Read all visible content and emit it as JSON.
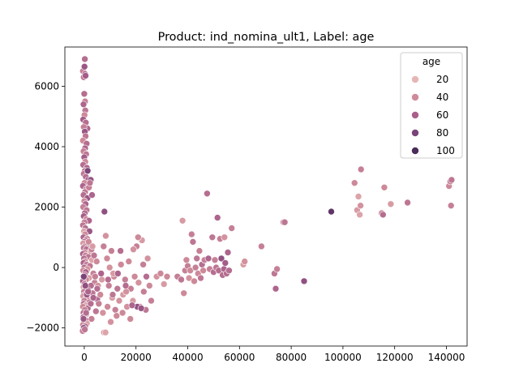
{
  "chart_data": {
    "type": "scatter",
    "title": "Product: ind_nomina_ult1, Label: age",
    "xlabel": "",
    "ylabel": "",
    "xlim": [
      -7500,
      148000
    ],
    "ylim": [
      -2600,
      7300
    ],
    "xticks": [
      0,
      20000,
      40000,
      60000,
      80000,
      100000,
      120000,
      140000
    ],
    "xtick_labels": [
      "0",
      "20000",
      "40000",
      "60000",
      "80000",
      "100000",
      "120000",
      "140000"
    ],
    "yticks": [
      -2000,
      0,
      2000,
      4000,
      6000
    ],
    "ytick_labels": [
      "−2000",
      "0",
      "2000",
      "4000",
      "6000"
    ],
    "grid": false,
    "legend": {
      "title": "age",
      "placement": "top-right",
      "entries": [
        {
          "label": "20",
          "color": "#e6b6b5"
        },
        {
          "label": "40",
          "color": "#cf8b9a"
        },
        {
          "label": "60",
          "color": "#a9608b"
        },
        {
          "label": "80",
          "color": "#7a4478"
        },
        {
          "label": "100",
          "color": "#4b2c5a"
        }
      ]
    },
    "hue_scale": {
      "min": 15,
      "max": 110
    },
    "points": [
      [
        -500,
        6500,
        45
      ],
      [
        200,
        6900,
        55
      ],
      [
        100,
        6650,
        70
      ],
      [
        300,
        6400,
        60
      ],
      [
        -200,
        6300,
        50
      ],
      [
        500,
        6350,
        65
      ],
      [
        0,
        5750,
        55
      ],
      [
        300,
        5500,
        45
      ],
      [
        -300,
        5400,
        60
      ],
      [
        400,
        5200,
        50
      ],
      [
        100,
        5050,
        40
      ],
      [
        -400,
        4900,
        65
      ],
      [
        600,
        4800,
        55
      ],
      [
        1200,
        4600,
        60
      ],
      [
        -200,
        4650,
        45
      ],
      [
        200,
        4500,
        70
      ],
      [
        500,
        4350,
        50
      ],
      [
        -500,
        4200,
        40
      ],
      [
        900,
        4100,
        55
      ],
      [
        300,
        3950,
        60
      ],
      [
        -300,
        3850,
        45
      ],
      [
        700,
        3750,
        50
      ],
      [
        0,
        3650,
        65
      ],
      [
        400,
        3500,
        40
      ],
      [
        -400,
        3400,
        55
      ],
      [
        1000,
        3300,
        60
      ],
      [
        200,
        3200,
        45
      ],
      [
        -200,
        3100,
        50
      ],
      [
        600,
        3000,
        55
      ],
      [
        1500,
        2900,
        65
      ],
      [
        100,
        2800,
        40
      ],
      [
        -500,
        2700,
        60
      ],
      [
        800,
        2600,
        45
      ],
      [
        300,
        2500,
        50
      ],
      [
        -300,
        2400,
        55
      ],
      [
        1200,
        2300,
        70
      ],
      [
        0,
        2200,
        40
      ],
      [
        500,
        2100,
        60
      ],
      [
        -400,
        2000,
        45
      ],
      [
        900,
        1900,
        50
      ],
      [
        200,
        1800,
        55
      ],
      [
        -200,
        1700,
        65
      ],
      [
        700,
        1600,
        40
      ],
      [
        1800,
        1550,
        60
      ],
      [
        100,
        1500,
        45
      ],
      [
        -500,
        1400,
        50
      ],
      [
        400,
        1300,
        55
      ],
      [
        -100,
        1200,
        25
      ],
      [
        2000,
        1200,
        70
      ],
      [
        300,
        1100,
        40
      ],
      [
        -300,
        1000,
        60
      ],
      [
        1100,
        950,
        45
      ],
      [
        600,
        900,
        50
      ],
      [
        0,
        850,
        55
      ],
      [
        -400,
        800,
        30
      ],
      [
        1400,
        750,
        60
      ],
      [
        200,
        700,
        45
      ],
      [
        -200,
        650,
        50
      ],
      [
        800,
        600,
        55
      ],
      [
        2500,
        550,
        35
      ],
      [
        100,
        500,
        40
      ],
      [
        -500,
        450,
        60
      ],
      [
        500,
        400,
        45
      ],
      [
        1600,
        350,
        50
      ],
      [
        -100,
        300,
        55
      ],
      [
        3000,
        250,
        25
      ],
      [
        300,
        200,
        40
      ],
      [
        -300,
        150,
        60
      ],
      [
        900,
        100,
        45
      ],
      [
        2200,
        50,
        50
      ],
      [
        0,
        0,
        55
      ],
      [
        1200,
        -50,
        35
      ],
      [
        -400,
        -100,
        40
      ],
      [
        600,
        -150,
        60
      ],
      [
        3500,
        -200,
        45
      ],
      [
        200,
        -250,
        50
      ],
      [
        -200,
        -300,
        55
      ],
      [
        1800,
        -350,
        30
      ],
      [
        700,
        -400,
        40
      ],
      [
        -500,
        -450,
        60
      ],
      [
        4000,
        -500,
        45
      ],
      [
        100,
        -550,
        50
      ],
      [
        2600,
        -600,
        55
      ],
      [
        -300,
        -650,
        25
      ],
      [
        500,
        -700,
        40
      ],
      [
        1500,
        -750,
        60
      ],
      [
        -100,
        -800,
        45
      ],
      [
        3200,
        -850,
        50
      ],
      [
        300,
        -900,
        55
      ],
      [
        -400,
        -950,
        30
      ],
      [
        900,
        -1000,
        40
      ],
      [
        5000,
        -1050,
        60
      ],
      [
        0,
        -1100,
        45
      ],
      [
        2000,
        -1150,
        50
      ],
      [
        -200,
        -1200,
        55
      ],
      [
        600,
        -1250,
        25
      ],
      [
        -500,
        -1300,
        40
      ],
      [
        1300,
        -1350,
        60
      ],
      [
        200,
        -1400,
        45
      ],
      [
        4500,
        -1450,
        50
      ],
      [
        -300,
        -1500,
        55
      ],
      [
        800,
        -1550,
        30
      ],
      [
        100,
        -1600,
        40
      ],
      [
        -400,
        -1650,
        60
      ],
      [
        2800,
        -1700,
        45
      ],
      [
        500,
        -1750,
        50
      ],
      [
        -100,
        -1800,
        55
      ],
      [
        1000,
        -1850,
        25
      ],
      [
        -500,
        -1900,
        40
      ],
      [
        300,
        -1950,
        60
      ],
      [
        -200,
        -2000,
        80
      ],
      [
        -600,
        -2100,
        45
      ],
      [
        200,
        -2050,
        50
      ],
      [
        700,
        -1500,
        55
      ],
      [
        -300,
        -1700,
        70
      ],
      [
        400,
        -600,
        75
      ],
      [
        -200,
        -300,
        85
      ],
      [
        1000,
        -900,
        70
      ],
      [
        1300,
        3200,
        85
      ],
      [
        2500,
        2900,
        75
      ],
      [
        3000,
        2400,
        60
      ],
      [
        1800,
        2650,
        45
      ],
      [
        2200,
        2800,
        50
      ],
      [
        1700,
        850,
        40
      ],
      [
        2800,
        600,
        45
      ],
      [
        3200,
        700,
        30
      ],
      [
        3800,
        400,
        50
      ],
      [
        4200,
        -300,
        45
      ],
      [
        4800,
        200,
        40
      ],
      [
        5300,
        -600,
        35
      ],
      [
        5600,
        -1200,
        45
      ],
      [
        6200,
        -900,
        40
      ],
      [
        6800,
        -400,
        30
      ],
      [
        7200,
        -1500,
        35
      ],
      [
        7600,
        -2150,
        30
      ],
      [
        8200,
        -2150,
        25
      ],
      [
        9000,
        -1300,
        40
      ],
      [
        9500,
        -600,
        45
      ],
      [
        10200,
        -1800,
        35
      ],
      [
        10800,
        -1000,
        30
      ],
      [
        11500,
        -300,
        40
      ],
      [
        12000,
        -1400,
        45
      ],
      [
        12800,
        -700,
        50
      ],
      [
        13500,
        -1100,
        35
      ],
      [
        14200,
        100,
        40
      ],
      [
        15000,
        -900,
        30
      ],
      [
        15800,
        -400,
        45
      ],
      [
        16500,
        -1300,
        35
      ],
      [
        17200,
        200,
        40
      ],
      [
        18000,
        -700,
        45
      ],
      [
        18800,
        -1100,
        30
      ],
      [
        19500,
        -300,
        40
      ],
      [
        20200,
        700,
        45
      ],
      [
        21000,
        -500,
        35
      ],
      [
        21600,
        -1300,
        40
      ],
      [
        22300,
        900,
        30
      ],
      [
        23000,
        -800,
        45
      ],
      [
        23800,
        -1400,
        50
      ],
      [
        24500,
        300,
        35
      ],
      [
        25200,
        -600,
        40
      ],
      [
        25900,
        -1100,
        45
      ],
      [
        7800,
        1850,
        75
      ],
      [
        8300,
        1050,
        35
      ],
      [
        7500,
        700,
        45
      ],
      [
        8800,
        300,
        40
      ],
      [
        9800,
        0,
        35
      ],
      [
        10500,
        550,
        45
      ],
      [
        11200,
        -200,
        30
      ],
      [
        12500,
        -1600,
        40
      ],
      [
        14000,
        550,
        55
      ],
      [
        14800,
        -1500,
        40
      ],
      [
        16200,
        -800,
        35
      ],
      [
        17800,
        -1700,
        40
      ],
      [
        19000,
        600,
        35
      ],
      [
        20800,
        1000,
        40
      ],
      [
        22800,
        100,
        45
      ],
      [
        24000,
        -300,
        55
      ],
      [
        20500,
        -1300,
        75
      ],
      [
        22000,
        -1350,
        70
      ],
      [
        18500,
        -1250,
        60
      ],
      [
        16000,
        -600,
        55
      ],
      [
        13000,
        -200,
        60
      ],
      [
        11000,
        -900,
        50
      ],
      [
        9200,
        -400,
        55
      ],
      [
        6500,
        -200,
        60
      ],
      [
        5000,
        -700,
        55
      ],
      [
        3500,
        -1000,
        60
      ],
      [
        2500,
        -1200,
        55
      ],
      [
        1500,
        -800,
        60
      ],
      [
        28000,
        -300,
        35
      ],
      [
        29500,
        -200,
        40
      ],
      [
        30800,
        -550,
        30
      ],
      [
        32000,
        -300,
        40
      ],
      [
        36000,
        -300,
        45
      ],
      [
        37500,
        -400,
        50
      ],
      [
        38000,
        1550,
        30
      ],
      [
        38500,
        -850,
        40
      ],
      [
        39000,
        -100,
        45
      ],
      [
        39500,
        250,
        40
      ],
      [
        40000,
        50,
        45
      ],
      [
        40500,
        -350,
        35
      ],
      [
        41000,
        -100,
        40
      ],
      [
        41500,
        1100,
        45
      ],
      [
        42000,
        850,
        50
      ],
      [
        42500,
        -450,
        40
      ],
      [
        43000,
        0,
        45
      ],
      [
        43500,
        300,
        50
      ],
      [
        44000,
        -200,
        40
      ],
      [
        44500,
        550,
        45
      ],
      [
        45000,
        -350,
        50
      ],
      [
        45500,
        100,
        55
      ],
      [
        46000,
        -100,
        40
      ],
      [
        46500,
        250,
        45
      ],
      [
        47500,
        2450,
        55
      ],
      [
        48000,
        300,
        60
      ],
      [
        48500,
        -50,
        45
      ],
      [
        49500,
        1000,
        50
      ],
      [
        50000,
        -150,
        55
      ],
      [
        50500,
        250,
        45
      ],
      [
        51000,
        0,
        50
      ],
      [
        51500,
        1650,
        60
      ],
      [
        52000,
        -100,
        55
      ],
      [
        52500,
        950,
        45
      ],
      [
        53000,
        300,
        75
      ],
      [
        53500,
        -250,
        55
      ],
      [
        54000,
        -50,
        60
      ],
      [
        54500,
        150,
        65
      ],
      [
        55000,
        -200,
        55
      ],
      [
        55500,
        500,
        60
      ],
      [
        56000,
        -100,
        55
      ],
      [
        57000,
        1300,
        45
      ],
      [
        54200,
        1000,
        35
      ],
      [
        61500,
        100,
        30
      ],
      [
        62000,
        200,
        35
      ],
      [
        68500,
        700,
        45
      ],
      [
        73500,
        -200,
        50
      ],
      [
        74000,
        -700,
        60
      ],
      [
        74500,
        -50,
        45
      ],
      [
        77000,
        1500,
        45
      ],
      [
        77500,
        1500,
        50
      ],
      [
        85000,
        -450,
        75
      ],
      [
        95500,
        1850,
        100
      ],
      [
        104500,
        2800,
        40
      ],
      [
        105500,
        1900,
        30
      ],
      [
        106000,
        2350,
        25
      ],
      [
        106500,
        1750,
        25
      ],
      [
        106800,
        2050,
        35
      ],
      [
        107000,
        3250,
        45
      ],
      [
        115000,
        1800,
        40
      ],
      [
        116000,
        2650,
        40
      ],
      [
        118500,
        2100,
        30
      ],
      [
        125000,
        2150,
        50
      ],
      [
        141000,
        2700,
        40
      ],
      [
        141500,
        2850,
        45
      ],
      [
        142000,
        2900,
        50
      ],
      [
        141800,
        2050,
        45
      ],
      [
        115500,
        1750,
        55
      ]
    ]
  }
}
